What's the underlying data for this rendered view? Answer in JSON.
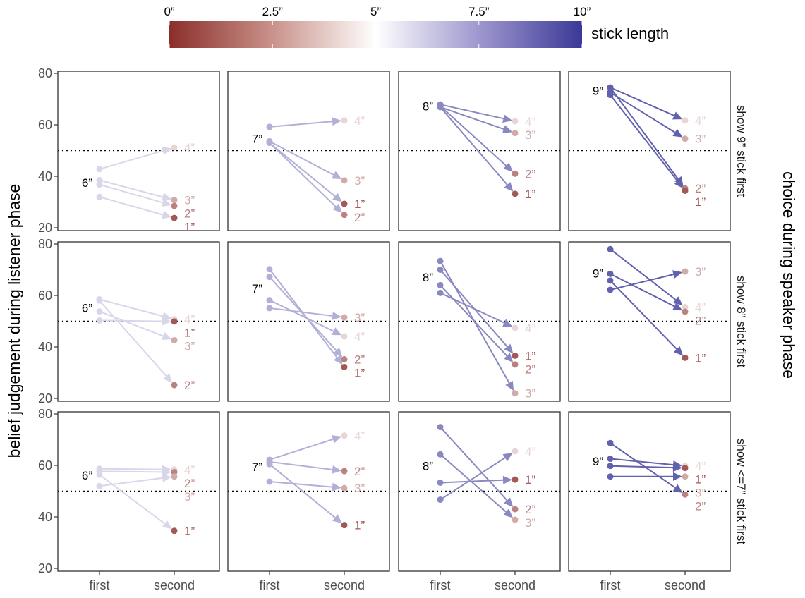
{
  "chart_data": {
    "type": "line",
    "xlabel": "",
    "ylabel": "belief judgement during listener phase",
    "right_title": "choice during speaker phase",
    "x_categories": [
      "first",
      "second"
    ],
    "y_ticks": [
      20,
      40,
      60,
      80
    ],
    "ylim": [
      20,
      80
    ],
    "reference_line": 50,
    "colorbar": {
      "title": "stick length",
      "ticks": [
        "0”",
        "2.5”",
        "5”",
        "7.5”",
        "10”"
      ],
      "low_color": "#8b2e2b",
      "mid_color": "#ffffff",
      "high_color": "#3b3998",
      "placement": "top"
    },
    "rows": [
      {
        "strip": "show 9” stick first",
        "panels": [
          {
            "first_label": "6”",
            "first_len": 6,
            "pairs": [
              {
                "label": "4”",
                "len": 4,
                "first": 42.8,
                "second": 51.2
              },
              {
                "label": "3”",
                "len": 3,
                "first": 38.5,
                "second": 30.8
              },
              {
                "label": "2”",
                "len": 2,
                "first": 36.8,
                "second": 28.5
              },
              {
                "label": "1”",
                "len": 1,
                "first": 32.0,
                "second": 23.8
              }
            ]
          },
          {
            "first_label": "7”",
            "first_len": 7,
            "pairs": [
              {
                "label": "4”",
                "len": 4,
                "first": 59.2,
                "second": 61.7
              },
              {
                "label": "3”",
                "len": 3,
                "first": 53.6,
                "second": 38.4
              },
              {
                "label": "1”",
                "len": 1,
                "first": 53.0,
                "second": 29.3
              },
              {
                "label": "2”",
                "len": 2,
                "first": 53.0,
                "second": 25.0
              }
            ]
          },
          {
            "first_label": "8”",
            "first_len": 8,
            "pairs": [
              {
                "label": "4”",
                "len": 4,
                "first": 67.9,
                "second": 61.4
              },
              {
                "label": "3”",
                "len": 3,
                "first": 66.9,
                "second": 56.8
              },
              {
                "label": "2”",
                "len": 2,
                "first": 67.3,
                "second": 41.0
              },
              {
                "label": "1”",
                "len": 1,
                "first": 66.9,
                "second": 33.2
              }
            ]
          },
          {
            "first_label": "9”",
            "first_len": 9,
            "pairs": [
              {
                "label": "4”",
                "len": 4,
                "first": 74.5,
                "second": 61.7
              },
              {
                "label": "3”",
                "len": 3,
                "first": 72.6,
                "second": 54.6
              },
              {
                "label": "2”",
                "len": 2,
                "first": 74.5,
                "second": 35.3
              },
              {
                "label": "1”",
                "len": 1,
                "first": 71.6,
                "second": 34.4
              }
            ]
          }
        ]
      },
      {
        "strip": "show 8” stick first",
        "panels": [
          {
            "first_label": "6”",
            "first_len": 6,
            "pairs": [
              {
                "label": "4”",
                "len": 4,
                "first": 58.5,
                "second": 50.8
              },
              {
                "label": "1”",
                "len": 1,
                "first": 50.3,
                "second": 49.9
              },
              {
                "label": "3”",
                "len": 3,
                "first": 53.8,
                "second": 42.6
              },
              {
                "label": "2”",
                "len": 2,
                "first": 58.0,
                "second": 25.2
              }
            ]
          },
          {
            "first_label": "7”",
            "first_len": 7,
            "pairs": [
              {
                "label": "3”",
                "len": 3,
                "first": 55.1,
                "second": 51.5
              },
              {
                "label": "4”",
                "len": 4,
                "first": 58.2,
                "second": 44.1
              },
              {
                "label": "2”",
                "len": 2,
                "first": 67.2,
                "second": 35.2
              },
              {
                "label": "1”",
                "len": 1,
                "first": 70.2,
                "second": 32.2
              }
            ]
          },
          {
            "first_label": "8”",
            "first_len": 8,
            "pairs": [
              {
                "label": "4”",
                "len": 4,
                "first": 61.0,
                "second": 47.4
              },
              {
                "label": "1”",
                "len": 1,
                "first": 70.0,
                "second": 36.6
              },
              {
                "label": "2”",
                "len": 2,
                "first": 64.0,
                "second": 33.2
              },
              {
                "label": "3”",
                "len": 3,
                "first": 73.4,
                "second": 22.0
              }
            ]
          },
          {
            "first_label": "9”",
            "first_len": 9,
            "pairs": [
              {
                "label": "3”",
                "len": 3,
                "first": 62.2,
                "second": 69.3
              },
              {
                "label": "4”",
                "len": 4,
                "first": 78.0,
                "second": 55.5
              },
              {
                "label": "2”",
                "len": 2,
                "first": 68.4,
                "second": 53.7
              },
              {
                "label": "1”",
                "len": 1,
                "first": 65.8,
                "second": 35.8
              }
            ]
          }
        ]
      },
      {
        "strip": "show <=7” stick first",
        "panels": [
          {
            "first_label": "6”",
            "first_len": 6,
            "pairs": [
              {
                "label": "4”",
                "len": 4,
                "first": 58.7,
                "second": 58.4
              },
              {
                "label": "2”",
                "len": 2,
                "first": 57.7,
                "second": 57.4
              },
              {
                "label": "3”",
                "len": 3,
                "first": 52.0,
                "second": 55.7
              },
              {
                "label": "1”",
                "len": 1,
                "first": 56.4,
                "second": 34.6
              }
            ]
          },
          {
            "first_label": "7”",
            "first_len": 7,
            "pairs": [
              {
                "label": "4”",
                "len": 4,
                "first": 62.2,
                "second": 71.6
              },
              {
                "label": "2”",
                "len": 2,
                "first": 61.4,
                "second": 57.8
              },
              {
                "label": "3”",
                "len": 3,
                "first": 53.7,
                "second": 51.2
              },
              {
                "label": "1”",
                "len": 1,
                "first": 60.5,
                "second": 36.8
              }
            ]
          },
          {
            "first_label": "8”",
            "first_len": 8,
            "pairs": [
              {
                "label": "4”",
                "len": 4,
                "first": 46.7,
                "second": 65.5
              },
              {
                "label": "1”",
                "len": 1,
                "first": 53.3,
                "second": 54.5
              },
              {
                "label": "2”",
                "len": 2,
                "first": 74.9,
                "second": 43.0
              },
              {
                "label": "3”",
                "len": 3,
                "first": 64.3,
                "second": 38.9
              }
            ]
          },
          {
            "first_label": "9”",
            "first_len": 9,
            "pairs": [
              {
                "label": "4”",
                "len": 4,
                "first": 62.6,
                "second": 59.8
              },
              {
                "label": "1”",
                "len": 1,
                "first": 59.8,
                "second": 59.0
              },
              {
                "label": "3”",
                "len": 3,
                "first": 55.7,
                "second": 55.7
              },
              {
                "label": "2”",
                "len": 2,
                "first": 68.7,
                "second": 48.7
              }
            ]
          }
        ]
      }
    ]
  }
}
